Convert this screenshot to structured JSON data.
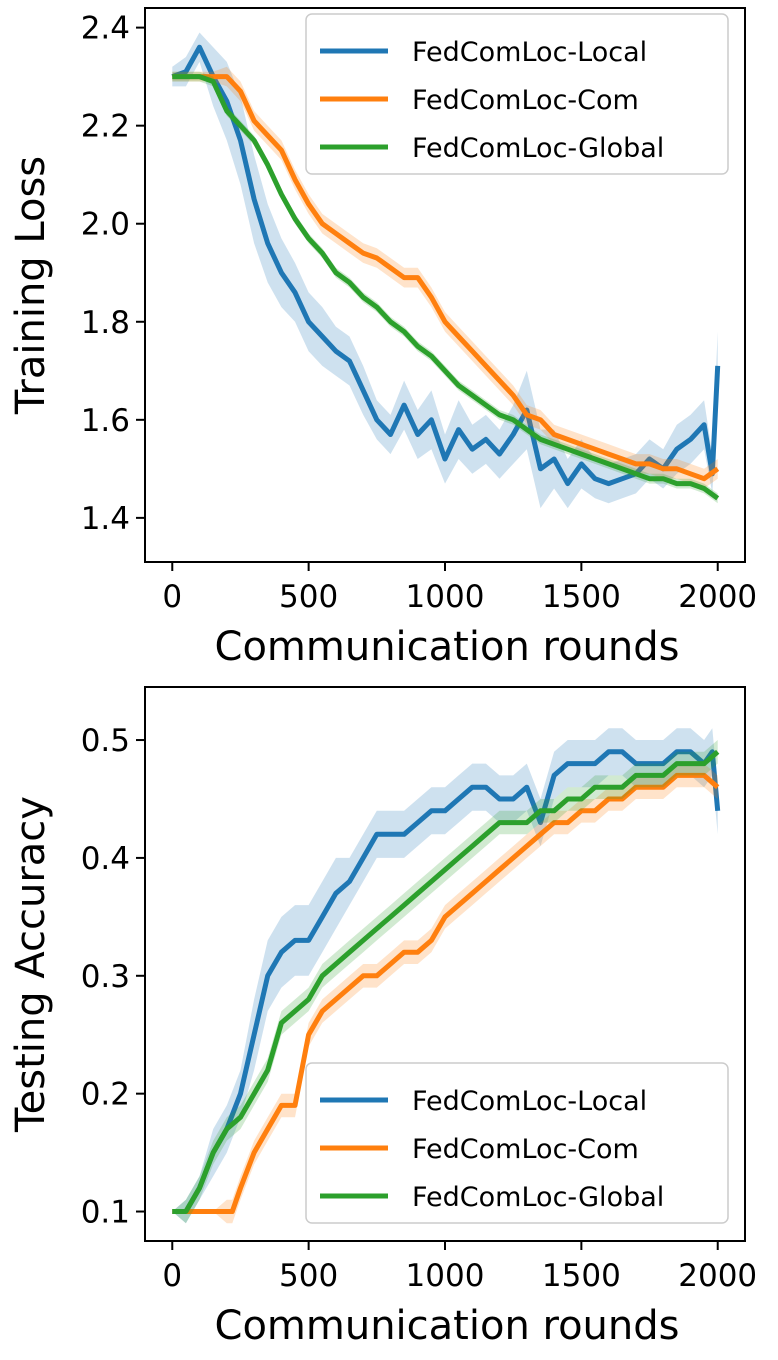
{
  "chart_data": [
    {
      "type": "line",
      "title": "",
      "xlabel": "Communication rounds",
      "ylabel": "Training Loss",
      "xlim": [
        -100,
        2100
      ],
      "ylim": [
        1.31,
        2.44
      ],
      "xticks": [
        0,
        500,
        1000,
        1500,
        2000
      ],
      "xtick_labels": [
        "0",
        "500",
        "1000",
        "1500",
        "2000"
      ],
      "yticks": [
        1.4,
        1.6,
        1.8,
        2.0,
        2.2,
        2.4
      ],
      "ytick_labels": [
        "1.4",
        "1.6",
        "1.8",
        "2.0",
        "2.2",
        "2.4"
      ],
      "grid": false,
      "legend_position": "top-right",
      "series": [
        {
          "name": "FedComLoc-Local",
          "color": "#1f77b4",
          "x": [
            0,
            50,
            100,
            150,
            200,
            250,
            300,
            350,
            400,
            450,
            500,
            550,
            600,
            650,
            700,
            750,
            800,
            850,
            900,
            950,
            1000,
            1050,
            1100,
            1150,
            1200,
            1250,
            1300,
            1350,
            1400,
            1450,
            1500,
            1550,
            1600,
            1650,
            1700,
            1750,
            1800,
            1850,
            1900,
            1950,
            1980,
            2000
          ],
          "values": [
            2.3,
            2.31,
            2.36,
            2.3,
            2.25,
            2.17,
            2.05,
            1.96,
            1.9,
            1.86,
            1.8,
            1.77,
            1.74,
            1.72,
            1.66,
            1.6,
            1.57,
            1.63,
            1.57,
            1.6,
            1.52,
            1.58,
            1.54,
            1.56,
            1.53,
            1.57,
            1.62,
            1.5,
            1.52,
            1.47,
            1.51,
            1.48,
            1.47,
            1.48,
            1.49,
            1.52,
            1.5,
            1.54,
            1.56,
            1.59,
            1.49,
            1.71
          ],
          "band": [
            0.02,
            0.03,
            0.03,
            0.06,
            0.08,
            0.09,
            0.09,
            0.08,
            0.07,
            0.06,
            0.06,
            0.06,
            0.05,
            0.05,
            0.05,
            0.04,
            0.04,
            0.05,
            0.05,
            0.06,
            0.05,
            0.06,
            0.05,
            0.05,
            0.05,
            0.06,
            0.08,
            0.08,
            0.06,
            0.05,
            0.05,
            0.04,
            0.04,
            0.04,
            0.04,
            0.04,
            0.04,
            0.05,
            0.05,
            0.05,
            0.04,
            0.07
          ]
        },
        {
          "name": "FedComLoc-Com",
          "color": "#ff7f0e",
          "x": [
            0,
            50,
            100,
            150,
            200,
            250,
            300,
            350,
            400,
            450,
            500,
            550,
            600,
            650,
            700,
            750,
            800,
            850,
            900,
            950,
            1000,
            1050,
            1100,
            1150,
            1200,
            1250,
            1300,
            1350,
            1400,
            1450,
            1500,
            1550,
            1600,
            1650,
            1700,
            1750,
            1800,
            1850,
            1900,
            1950,
            2000
          ],
          "values": [
            2.3,
            2.3,
            2.3,
            2.3,
            2.3,
            2.27,
            2.21,
            2.18,
            2.15,
            2.09,
            2.04,
            2.0,
            1.98,
            1.96,
            1.94,
            1.93,
            1.91,
            1.89,
            1.89,
            1.85,
            1.8,
            1.77,
            1.74,
            1.71,
            1.68,
            1.65,
            1.61,
            1.6,
            1.57,
            1.56,
            1.55,
            1.54,
            1.53,
            1.52,
            1.51,
            1.51,
            1.5,
            1.5,
            1.49,
            1.48,
            1.5
          ],
          "band": [
            0.01,
            0.01,
            0.01,
            0.01,
            0.02,
            0.02,
            0.02,
            0.02,
            0.02,
            0.02,
            0.02,
            0.02,
            0.02,
            0.02,
            0.02,
            0.02,
            0.02,
            0.02,
            0.02,
            0.02,
            0.02,
            0.02,
            0.02,
            0.02,
            0.02,
            0.02,
            0.02,
            0.02,
            0.02,
            0.02,
            0.02,
            0.02,
            0.02,
            0.02,
            0.02,
            0.02,
            0.02,
            0.02,
            0.02,
            0.02,
            0.02
          ]
        },
        {
          "name": "FedComLoc-Global",
          "color": "#2ca02c",
          "x": [
            0,
            50,
            100,
            150,
            200,
            250,
            300,
            350,
            400,
            450,
            500,
            550,
            600,
            650,
            700,
            750,
            800,
            850,
            900,
            950,
            1000,
            1050,
            1100,
            1150,
            1200,
            1250,
            1300,
            1350,
            1400,
            1450,
            1500,
            1550,
            1600,
            1650,
            1700,
            1750,
            1800,
            1850,
            1900,
            1950,
            2000
          ],
          "values": [
            2.3,
            2.3,
            2.3,
            2.29,
            2.23,
            2.2,
            2.17,
            2.12,
            2.06,
            2.01,
            1.97,
            1.94,
            1.9,
            1.88,
            1.85,
            1.83,
            1.8,
            1.78,
            1.75,
            1.73,
            1.7,
            1.67,
            1.65,
            1.63,
            1.61,
            1.6,
            1.58,
            1.56,
            1.55,
            1.54,
            1.53,
            1.52,
            1.51,
            1.5,
            1.49,
            1.48,
            1.48,
            1.47,
            1.47,
            1.46,
            1.44
          ],
          "band": [
            0.01,
            0.01,
            0.01,
            0.01,
            0.01,
            0.01,
            0.01,
            0.01,
            0.01,
            0.01,
            0.01,
            0.01,
            0.01,
            0.01,
            0.01,
            0.01,
            0.01,
            0.01,
            0.01,
            0.01,
            0.01,
            0.01,
            0.01,
            0.01,
            0.01,
            0.01,
            0.01,
            0.01,
            0.01,
            0.01,
            0.01,
            0.01,
            0.01,
            0.01,
            0.01,
            0.01,
            0.01,
            0.01,
            0.01,
            0.01,
            0.01
          ]
        }
      ]
    },
    {
      "type": "line",
      "title": "",
      "xlabel": "Communication rounds",
      "ylabel": "Testing Accuracy",
      "xlim": [
        -100,
        2100
      ],
      "ylim": [
        0.075,
        0.545
      ],
      "xticks": [
        0,
        500,
        1000,
        1500,
        2000
      ],
      "xtick_labels": [
        "0",
        "500",
        "1000",
        "1500",
        "2000"
      ],
      "yticks": [
        0.1,
        0.2,
        0.3,
        0.4,
        0.5
      ],
      "ytick_labels": [
        "0.1",
        "0.2",
        "0.3",
        "0.4",
        "0.5"
      ],
      "grid": false,
      "legend_position": "bottom-right",
      "series": [
        {
          "name": "FedComLoc-Local",
          "color": "#1f77b4",
          "x": [
            0,
            50,
            100,
            150,
            200,
            250,
            300,
            350,
            400,
            450,
            500,
            550,
            600,
            650,
            700,
            750,
            800,
            850,
            900,
            950,
            1000,
            1050,
            1100,
            1150,
            1200,
            1250,
            1300,
            1350,
            1400,
            1450,
            1500,
            1550,
            1600,
            1650,
            1700,
            1750,
            1800,
            1850,
            1900,
            1950,
            1980,
            2000
          ],
          "values": [
            0.1,
            0.1,
            0.12,
            0.15,
            0.17,
            0.2,
            0.25,
            0.3,
            0.32,
            0.33,
            0.33,
            0.35,
            0.37,
            0.38,
            0.4,
            0.42,
            0.42,
            0.42,
            0.43,
            0.44,
            0.44,
            0.45,
            0.46,
            0.46,
            0.45,
            0.45,
            0.46,
            0.43,
            0.47,
            0.48,
            0.48,
            0.48,
            0.49,
            0.49,
            0.48,
            0.48,
            0.48,
            0.49,
            0.49,
            0.48,
            0.49,
            0.44
          ],
          "band": [
            0.0,
            0.01,
            0.01,
            0.02,
            0.02,
            0.02,
            0.03,
            0.03,
            0.03,
            0.03,
            0.03,
            0.03,
            0.03,
            0.02,
            0.02,
            0.02,
            0.02,
            0.02,
            0.02,
            0.02,
            0.02,
            0.02,
            0.02,
            0.02,
            0.02,
            0.02,
            0.02,
            0.02,
            0.02,
            0.02,
            0.02,
            0.02,
            0.02,
            0.02,
            0.02,
            0.02,
            0.02,
            0.02,
            0.02,
            0.02,
            0.02,
            0.02
          ]
        },
        {
          "name": "FedComLoc-Com",
          "color": "#ff7f0e",
          "x": [
            0,
            50,
            100,
            150,
            200,
            220,
            250,
            300,
            350,
            400,
            450,
            500,
            550,
            600,
            650,
            700,
            750,
            800,
            850,
            900,
            950,
            1000,
            1050,
            1100,
            1150,
            1200,
            1250,
            1300,
            1350,
            1400,
            1450,
            1500,
            1550,
            1600,
            1650,
            1700,
            1750,
            1800,
            1850,
            1900,
            1950,
            2000
          ],
          "values": [
            0.1,
            0.1,
            0.1,
            0.1,
            0.1,
            0.1,
            0.12,
            0.15,
            0.17,
            0.19,
            0.19,
            0.25,
            0.27,
            0.28,
            0.29,
            0.3,
            0.3,
            0.31,
            0.32,
            0.32,
            0.33,
            0.35,
            0.36,
            0.37,
            0.38,
            0.39,
            0.4,
            0.41,
            0.42,
            0.43,
            0.43,
            0.44,
            0.44,
            0.45,
            0.45,
            0.46,
            0.46,
            0.46,
            0.47,
            0.47,
            0.47,
            0.46
          ],
          "band": [
            0.0,
            0.0,
            0.0,
            0.0,
            0.01,
            0.01,
            0.01,
            0.01,
            0.01,
            0.01,
            0.01,
            0.01,
            0.01,
            0.01,
            0.01,
            0.01,
            0.01,
            0.01,
            0.01,
            0.01,
            0.01,
            0.01,
            0.01,
            0.01,
            0.01,
            0.01,
            0.01,
            0.01,
            0.01,
            0.01,
            0.01,
            0.01,
            0.01,
            0.01,
            0.01,
            0.01,
            0.01,
            0.01,
            0.01,
            0.01,
            0.01,
            0.01
          ]
        },
        {
          "name": "FedComLoc-Global",
          "color": "#2ca02c",
          "x": [
            0,
            50,
            100,
            150,
            200,
            250,
            300,
            350,
            400,
            450,
            500,
            550,
            600,
            650,
            700,
            750,
            800,
            850,
            900,
            950,
            1000,
            1050,
            1100,
            1150,
            1200,
            1250,
            1300,
            1350,
            1400,
            1450,
            1500,
            1550,
            1600,
            1650,
            1700,
            1750,
            1800,
            1850,
            1900,
            1950,
            2000
          ],
          "values": [
            0.1,
            0.1,
            0.12,
            0.15,
            0.17,
            0.18,
            0.2,
            0.22,
            0.26,
            0.27,
            0.28,
            0.3,
            0.31,
            0.32,
            0.33,
            0.34,
            0.35,
            0.36,
            0.37,
            0.38,
            0.39,
            0.4,
            0.41,
            0.42,
            0.43,
            0.43,
            0.43,
            0.44,
            0.44,
            0.45,
            0.45,
            0.46,
            0.46,
            0.46,
            0.47,
            0.47,
            0.47,
            0.48,
            0.48,
            0.48,
            0.49
          ],
          "band": [
            0.0,
            0.01,
            0.01,
            0.01,
            0.01,
            0.01,
            0.01,
            0.01,
            0.01,
            0.01,
            0.01,
            0.01,
            0.01,
            0.01,
            0.01,
            0.01,
            0.01,
            0.01,
            0.01,
            0.01,
            0.01,
            0.01,
            0.01,
            0.01,
            0.01,
            0.01,
            0.01,
            0.01,
            0.01,
            0.01,
            0.01,
            0.01,
            0.01,
            0.01,
            0.01,
            0.01,
            0.01,
            0.01,
            0.01,
            0.01,
            0.01
          ]
        }
      ]
    }
  ]
}
